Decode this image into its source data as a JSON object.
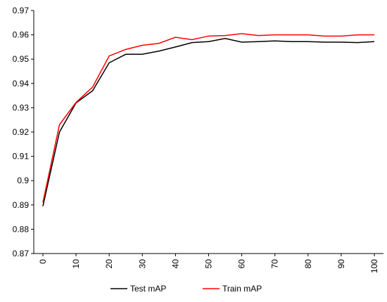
{
  "chart_data": {
    "type": "line",
    "x": [
      0,
      5,
      10,
      15,
      20,
      25,
      30,
      35,
      40,
      45,
      50,
      55,
      60,
      65,
      70,
      75,
      80,
      85,
      90,
      95,
      100
    ],
    "series": [
      {
        "name": "Test mAP",
        "color": "#000000",
        "values": [
          0.8895,
          0.92,
          0.932,
          0.937,
          0.9485,
          0.952,
          0.952,
          0.9533,
          0.955,
          0.9568,
          0.9572,
          0.9585,
          0.957,
          0.9572,
          0.9575,
          0.9572,
          0.9572,
          0.957,
          0.957,
          0.9568,
          0.9572
        ]
      },
      {
        "name": "Train mAP",
        "color": "#ff0000",
        "values": [
          0.891,
          0.923,
          0.9322,
          0.9385,
          0.9513,
          0.954,
          0.9557,
          0.9565,
          0.959,
          0.958,
          0.9595,
          0.9597,
          0.9605,
          0.9597,
          0.96,
          0.96,
          0.96,
          0.9595,
          0.9595,
          0.96,
          0.96
        ]
      }
    ],
    "xlim": [
      -2.75,
      102.75
    ],
    "xticks": [
      0,
      10,
      20,
      30,
      40,
      50,
      60,
      70,
      80,
      90,
      100
    ],
    "ylim": [
      0.87,
      0.97
    ],
    "yticks": [
      0.87,
      0.88,
      0.89,
      0.9,
      0.91,
      0.92,
      0.93,
      0.94,
      0.95,
      0.96,
      0.97
    ],
    "grid": false,
    "legend": "bottom"
  }
}
